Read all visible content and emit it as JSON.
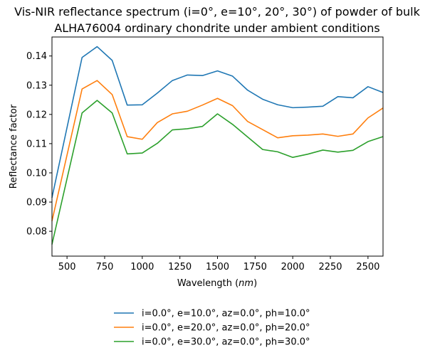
{
  "chart_data": {
    "type": "line",
    "title_lines": [
      "Vis-NIR reflectance spectrum (i=0°, e=10°, 20°, 30°) of powder of bulk",
      "ALHA76004 ordinary chondrite under ambient conditions"
    ],
    "xlabel_prefix": "Wavelength (",
    "xlabel_unit": "nm",
    "xlabel_suffix": ")",
    "ylabel": "Reflectance factor",
    "xlim": [
      400,
      2600
    ],
    "ylim": [
      0.0715,
      0.1465
    ],
    "xticks": [
      500,
      750,
      1000,
      1250,
      1500,
      1750,
      2000,
      2250,
      2500
    ],
    "yticks": [
      0.08,
      0.09,
      0.1,
      0.11,
      0.12,
      0.13,
      0.14
    ],
    "ytick_labels": [
      "0.08",
      "0.09",
      "0.10",
      "0.11",
      "0.12",
      "0.13",
      "0.14"
    ],
    "legend_position": "below",
    "x": [
      400,
      600,
      700,
      800,
      900,
      1000,
      1100,
      1200,
      1300,
      1400,
      1500,
      1600,
      1700,
      1800,
      1900,
      2000,
      2100,
      2200,
      2300,
      2400,
      2500,
      2600
    ],
    "series": [
      {
        "name": "i=0.0°, e=10.0°, az=0.0°, ph=10.0°",
        "color": "#1f77b4",
        "values": [
          0.0915,
          0.1395,
          0.1432,
          0.1385,
          0.1232,
          0.1233,
          0.1273,
          0.1316,
          0.1335,
          0.1333,
          0.1349,
          0.1331,
          0.1283,
          0.1252,
          0.1233,
          0.1223,
          0.1225,
          0.1228,
          0.1261,
          0.1257,
          0.1295,
          0.1275
        ]
      },
      {
        "name": "i=0.0°, e=20.0°, az=0.0°, ph=20.0°",
        "color": "#ff7f0e",
        "values": [
          0.0835,
          0.1287,
          0.1316,
          0.1268,
          0.1124,
          0.1115,
          0.1172,
          0.1202,
          0.1211,
          0.1232,
          0.1255,
          0.123,
          0.1176,
          0.1148,
          0.112,
          0.1127,
          0.1129,
          0.1133,
          0.1125,
          0.1133,
          0.1188,
          0.1222
        ]
      },
      {
        "name": "i=0.0°, e=30.0°, az=0.0°, ph=30.0°",
        "color": "#2ca02c",
        "values": [
          0.0755,
          0.1205,
          0.1248,
          0.1205,
          0.1065,
          0.1068,
          0.1101,
          0.1147,
          0.1151,
          0.1159,
          0.1202,
          0.1166,
          0.1123,
          0.108,
          0.1072,
          0.1053,
          0.1064,
          0.1078,
          0.1071,
          0.1077,
          0.1107,
          0.1124
        ]
      }
    ]
  }
}
